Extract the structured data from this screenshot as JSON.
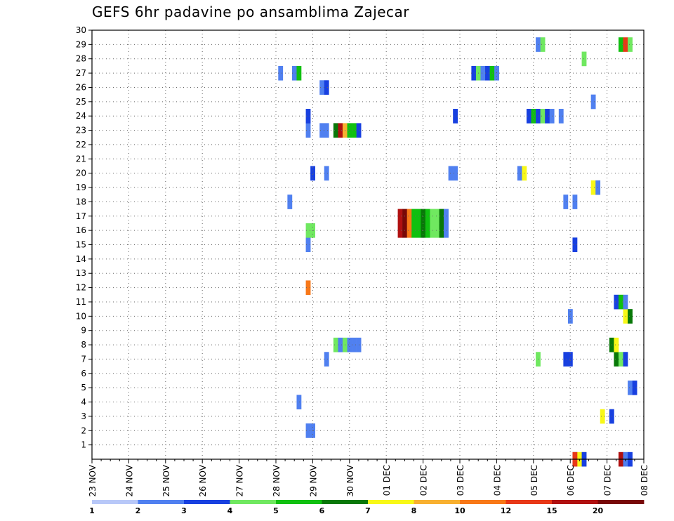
{
  "chart_data": {
    "type": "heatmap",
    "title": "GEFS 6hr padavine po ansamblima Zajecar",
    "xlabel": "",
    "ylabel": "",
    "x_ticks": [
      "23 NOV",
      "24 NOV",
      "25 NOV",
      "26 NOV",
      "27 NOV",
      "28 NOV",
      "29 NOV",
      "30 NOV",
      "01 DEC",
      "02 DEC",
      "03 DEC",
      "04 DEC",
      "05 DEC",
      "06 DEC",
      "07 DEC",
      "08 DEC"
    ],
    "y_ticks": [
      1,
      2,
      3,
      4,
      5,
      6,
      7,
      8,
      9,
      10,
      11,
      12,
      13,
      14,
      15,
      16,
      17,
      18,
      19,
      20,
      21,
      22,
      23,
      24,
      25,
      26,
      27,
      28,
      29,
      30
    ],
    "xlim": [
      0,
      60
    ],
    "ylim": [
      0,
      30
    ],
    "grid": true,
    "legend_position": "bottom",
    "legend_levels": [
      "1",
      "2",
      "3",
      "4",
      "5",
      "6",
      "7",
      "8",
      "10",
      "12",
      "15",
      "20"
    ],
    "level_colors": [
      "#b8c8f8",
      "#5080f0",
      "#1840e0",
      "#70e860",
      "#10c010",
      "#087808",
      "#f8f818",
      "#f8b030",
      "#f87818",
      "#e83818",
      "#b01010",
      "#780808"
    ],
    "cells": [
      [
        0,
        52.5,
        1
      ],
      [
        0,
        53,
        6
      ],
      [
        0,
        53.5,
        6
      ],
      [
        0,
        52.5,
        9
      ],
      [
        0,
        53.5,
        2
      ],
      [
        0,
        57.5,
        10
      ],
      [
        0,
        58,
        1
      ],
      [
        0,
        58.5,
        2
      ],
      [
        2,
        23.5,
        1
      ],
      [
        2,
        24,
        1
      ],
      [
        3,
        55.5,
        6
      ],
      [
        3,
        56.5,
        2
      ],
      [
        4,
        22.5,
        1
      ],
      [
        5,
        58.5,
        1
      ],
      [
        5,
        59,
        2
      ],
      [
        7,
        25.5,
        1
      ],
      [
        7,
        48.5,
        3
      ],
      [
        7,
        51.5,
        2
      ],
      [
        7,
        52,
        2
      ],
      [
        7,
        57,
        5
      ],
      [
        7,
        57.5,
        3
      ],
      [
        7,
        58,
        2
      ],
      [
        8,
        26.5,
        3
      ],
      [
        8,
        27,
        1
      ],
      [
        8,
        27.5,
        3
      ],
      [
        8,
        28,
        1
      ],
      [
        8,
        28.5,
        1
      ],
      [
        8,
        29,
        1
      ],
      [
        8,
        56.5,
        5
      ],
      [
        8,
        57,
        6
      ],
      [
        10,
        52,
        1
      ],
      [
        10,
        58,
        6
      ],
      [
        10,
        58.5,
        5
      ],
      [
        11,
        57,
        2
      ],
      [
        11,
        57.5,
        4
      ],
      [
        11,
        58,
        1
      ],
      [
        12,
        23.5,
        8
      ],
      [
        15,
        23.5,
        1
      ],
      [
        15,
        52.5,
        2
      ],
      [
        16,
        23.5,
        3
      ],
      [
        16,
        24,
        3
      ],
      [
        16,
        33.5,
        10
      ],
      [
        16,
        34,
        11
      ],
      [
        16,
        34.5,
        8
      ],
      [
        16,
        35,
        4
      ],
      [
        16,
        35.5,
        4
      ],
      [
        16,
        36,
        5
      ],
      [
        16,
        36.5,
        4
      ],
      [
        16,
        37,
        3
      ],
      [
        16,
        37.5,
        3
      ],
      [
        16,
        38,
        5
      ],
      [
        16,
        38.5,
        1
      ],
      [
        17,
        33.5,
        10
      ],
      [
        17,
        34,
        11
      ],
      [
        17,
        34.5,
        8
      ],
      [
        17,
        35,
        4
      ],
      [
        17,
        35.5,
        4
      ],
      [
        17,
        36,
        5
      ],
      [
        17,
        36.5,
        4
      ],
      [
        17,
        37,
        3
      ],
      [
        17,
        37.5,
        3
      ],
      [
        17,
        38,
        5
      ],
      [
        17,
        38.5,
        1
      ],
      [
        18,
        21.5,
        1
      ],
      [
        18,
        51.5,
        1
      ],
      [
        18,
        52.5,
        1
      ],
      [
        19,
        54.5,
        6
      ],
      [
        19,
        55,
        1
      ],
      [
        20,
        24,
        2
      ],
      [
        20,
        25.5,
        1
      ],
      [
        20,
        39,
        1
      ],
      [
        20,
        39.5,
        1
      ],
      [
        20,
        46.5,
        1
      ],
      [
        20,
        47,
        6
      ],
      [
        23,
        23.5,
        1
      ],
      [
        23,
        25,
        1
      ],
      [
        23,
        25.5,
        1
      ],
      [
        23,
        26.5,
        5
      ],
      [
        23,
        27,
        10
      ],
      [
        23,
        27.5,
        7
      ],
      [
        23,
        28,
        4
      ],
      [
        23,
        28.5,
        4
      ],
      [
        23,
        29,
        2
      ],
      [
        24,
        23.5,
        2
      ],
      [
        24,
        39.5,
        2
      ],
      [
        24,
        47.5,
        2
      ],
      [
        24,
        48,
        4
      ],
      [
        24,
        48.5,
        2
      ],
      [
        24,
        49,
        3
      ],
      [
        24,
        49.5,
        2
      ],
      [
        24,
        50,
        1
      ],
      [
        24,
        51,
        1
      ],
      [
        25,
        54.5,
        1
      ],
      [
        26,
        25,
        1
      ],
      [
        26,
        25.5,
        2
      ],
      [
        27,
        20.5,
        1
      ],
      [
        27,
        22,
        1
      ],
      [
        27,
        22.5,
        4
      ],
      [
        27,
        41.5,
        2
      ],
      [
        27,
        42,
        3
      ],
      [
        27,
        42.5,
        1
      ],
      [
        27,
        43,
        2
      ],
      [
        27,
        43.5,
        4
      ],
      [
        27,
        44,
        1
      ],
      [
        28,
        53.5,
        3
      ],
      [
        29,
        48.5,
        1
      ],
      [
        29,
        49,
        3
      ],
      [
        29,
        57.5,
        4
      ],
      [
        29,
        58,
        9
      ],
      [
        29,
        58.5,
        3
      ]
    ]
  }
}
